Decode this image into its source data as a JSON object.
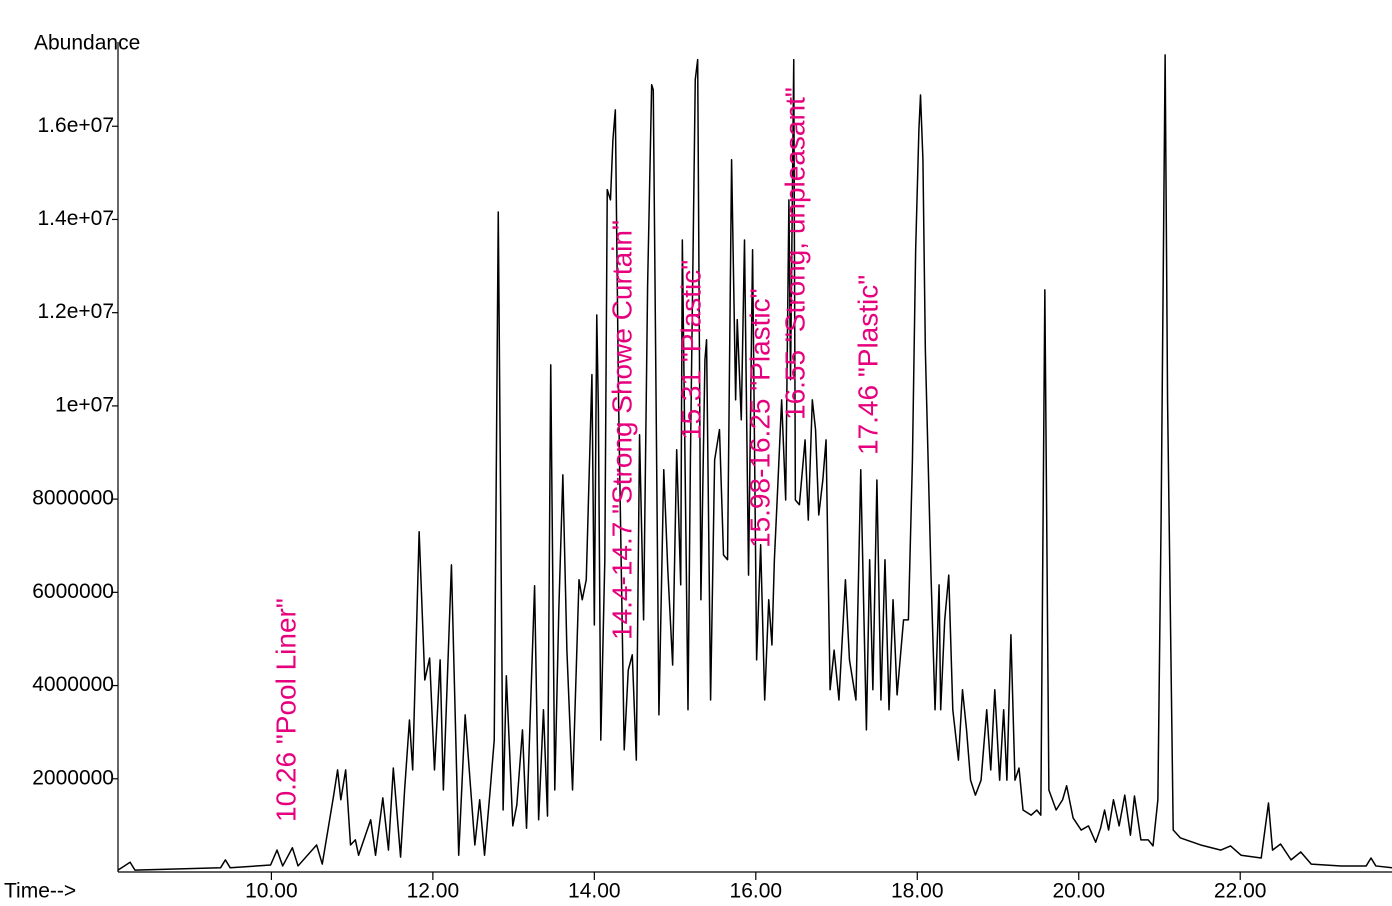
{
  "chart_data": {
    "type": "line",
    "x_label": "Time-->",
    "y_label": "Abundance",
    "color": "#000000",
    "xlim": [
      8.1,
      23.88
    ],
    "ylim": [
      0,
      17700000
    ],
    "xticks": [
      {
        "value": 10,
        "label": "10.00"
      },
      {
        "value": 12,
        "label": "12.00"
      },
      {
        "value": 14,
        "label": "14.00"
      },
      {
        "value": 16,
        "label": "16.00"
      },
      {
        "value": 18,
        "label": "18.00"
      },
      {
        "value": 20,
        "label": "20.00"
      },
      {
        "value": 22,
        "label": "22.00"
      }
    ],
    "yticks": [
      2000000,
      4000000,
      6000000,
      8000000,
      {
        "value": 10000000,
        "label": "1e+07"
      },
      {
        "value": 12000000,
        "label": "1.2e+07"
      },
      {
        "value": 14000000,
        "label": "1.4e+07"
      },
      {
        "value": 16000000,
        "label": "1.6e+07"
      }
    ],
    "annotations": [
      "10.26 \"Pool Liner\"",
      "14.4-14.7 \"Strong Showe Curtain\"",
      "15.31 \"Plastic\"",
      "15.98-16.25 \"Plastic\"",
      "16.55 \"Strong, unpleasant\"",
      "17.46 \"Plastic\""
    ],
    "annotation_color": "#e6007e",
    "x": [
      8.1,
      8.25,
      8.31,
      9.37,
      9.43,
      9.49,
      9.99,
      10.07,
      10.14,
      10.26,
      10.33,
      10.56,
      10.63,
      10.77,
      10.82,
      10.86,
      10.92,
      10.98,
      11.04,
      11.08,
      11.23,
      11.29,
      11.38,
      11.45,
      11.51,
      11.6,
      11.65,
      11.71,
      11.75,
      11.83,
      11.9,
      11.96,
      12.02,
      12.09,
      12.13,
      12.23,
      12.32,
      12.4,
      12.52,
      12.58,
      12.64,
      12.71,
      12.76,
      12.81,
      12.87,
      12.91,
      12.99,
      13.04,
      13.11,
      13.16,
      13.26,
      13.31,
      13.37,
      13.42,
      13.46,
      13.51,
      13.56,
      13.61,
      13.66,
      13.73,
      13.81,
      13.85,
      13.9,
      13.97,
      14.0,
      14.03,
      14.05,
      14.08,
      14.13,
      14.16,
      14.2,
      14.23,
      14.26,
      14.3,
      14.37,
      14.42,
      14.47,
      14.52,
      14.56,
      14.61,
      14.66,
      14.71,
      14.73,
      14.8,
      14.86,
      14.91,
      14.97,
      15.02,
      15.07,
      15.09,
      15.12,
      15.16,
      15.19,
      15.25,
      15.28,
      15.32,
      15.37,
      15.39,
      15.44,
      15.49,
      15.55,
      15.6,
      15.65,
      15.7,
      15.75,
      15.77,
      15.82,
      15.86,
      15.91,
      15.96,
      16.01,
      16.06,
      16.11,
      16.16,
      16.2,
      16.23,
      16.27,
      16.32,
      16.37,
      16.41,
      16.43,
      16.47,
      16.49,
      16.54,
      16.61,
      16.65,
      16.7,
      16.74,
      16.78,
      16.83,
      16.87,
      16.92,
      16.97,
      17.03,
      17.11,
      17.16,
      17.24,
      17.3,
      17.34,
      17.37,
      17.41,
      17.45,
      17.5,
      17.55,
      17.6,
      17.65,
      17.7,
      17.75,
      17.83,
      17.89,
      17.94,
      17.98,
      18.02,
      18.04,
      18.07,
      18.1,
      18.17,
      18.22,
      18.27,
      18.29,
      18.34,
      18.39,
      18.44,
      18.51,
      18.56,
      18.61,
      18.66,
      18.72,
      18.79,
      18.86,
      18.91,
      18.96,
      19.02,
      19.07,
      19.11,
      19.16,
      19.21,
      19.26,
      19.31,
      19.41,
      19.48,
      19.53,
      19.58,
      19.63,
      19.72,
      19.8,
      19.85,
      19.93,
      20.03,
      20.12,
      20.21,
      20.27,
      20.32,
      20.37,
      20.43,
      20.5,
      20.57,
      20.64,
      20.69,
      20.77,
      20.86,
      20.92,
      20.98,
      21.02,
      21.07,
      21.1,
      21.17,
      21.26,
      21.51,
      21.76,
      21.88,
      22.01,
      22.26,
      22.35,
      22.4,
      22.5,
      22.63,
      22.75,
      22.88,
      23.25,
      23.56,
      23.62,
      23.68,
      23.88
    ],
    "values": [
      40000,
      210000,
      40000,
      90000,
      260000,
      90000,
      150000,
      470000,
      130000,
      520000,
      130000,
      580000,
      170000,
      1630000,
      2190000,
      1550000,
      2190000,
      580000,
      690000,
      360000,
      1120000,
      360000,
      1590000,
      470000,
      2230000,
      320000,
      1760000,
      3260000,
      2190000,
      7300000,
      4120000,
      4590000,
      2190000,
      4550000,
      1760000,
      6590000,
      360000,
      3370000,
      580000,
      1550000,
      360000,
      1760000,
      2830000,
      14160000,
      1330000,
      4210000,
      990000,
      1440000,
      3050000,
      940000,
      6140000,
      1120000,
      3480000,
      1200000,
      10880000,
      1760000,
      5620000,
      8520000,
      4760000,
      1760000,
      6270000,
      5840000,
      6270000,
      10670000,
      5300000,
      11950000,
      9910000,
      2830000,
      6700000,
      14640000,
      14420000,
      15710000,
      16350000,
      10130000,
      2620000,
      4330000,
      4660000,
      2400000,
      9380000,
      5410000,
      12600000,
      16890000,
      16780000,
      3370000,
      8630000,
      6480000,
      4440000,
      9060000,
      6160000,
      13560000,
      9270000,
      3480000,
      8840000,
      17000000,
      17430000,
      5840000,
      10990000,
      11420000,
      3690000,
      8840000,
      9490000,
      6800000,
      6700000,
      15280000,
      10130000,
      11850000,
      9700000,
      13560000,
      6370000,
      13350000,
      4550000,
      7020000,
      3690000,
      5840000,
      4870000,
      6700000,
      8200000,
      10130000,
      7980000,
      14420000,
      10560000,
      17430000,
      7980000,
      7880000,
      9270000,
      7550000,
      10130000,
      9490000,
      7660000,
      8410000,
      9270000,
      3910000,
      4760000,
      3690000,
      6270000,
      4550000,
      3690000,
      8630000,
      5410000,
      3050000,
      6700000,
      3910000,
      8410000,
      3690000,
      6700000,
      3480000,
      5840000,
      3800000,
      5410000,
      5410000,
      8840000,
      13350000,
      15920000,
      16670000,
      15280000,
      11200000,
      6370000,
      3480000,
      6160000,
      3480000,
      5410000,
      6370000,
      3480000,
      2400000,
      3910000,
      3050000,
      1970000,
      1650000,
      1970000,
      3480000,
      2190000,
      3910000,
      1970000,
      3480000,
      1970000,
      5090000,
      1970000,
      2230000,
      1330000,
      1220000,
      1330000,
      1220000,
      12490000,
      1760000,
      1330000,
      1550000,
      1850000,
      1160000,
      900000,
      990000,
      640000,
      940000,
      1330000,
      900000,
      1550000,
      990000,
      1650000,
      790000,
      1630000,
      690000,
      690000,
      560000,
      1550000,
      7550000,
      17530000,
      10130000,
      900000,
      730000,
      580000,
      470000,
      560000,
      360000,
      300000,
      1480000,
      470000,
      600000,
      260000,
      430000,
      170000,
      130000,
      130000,
      300000,
      130000,
      90000
    ]
  }
}
